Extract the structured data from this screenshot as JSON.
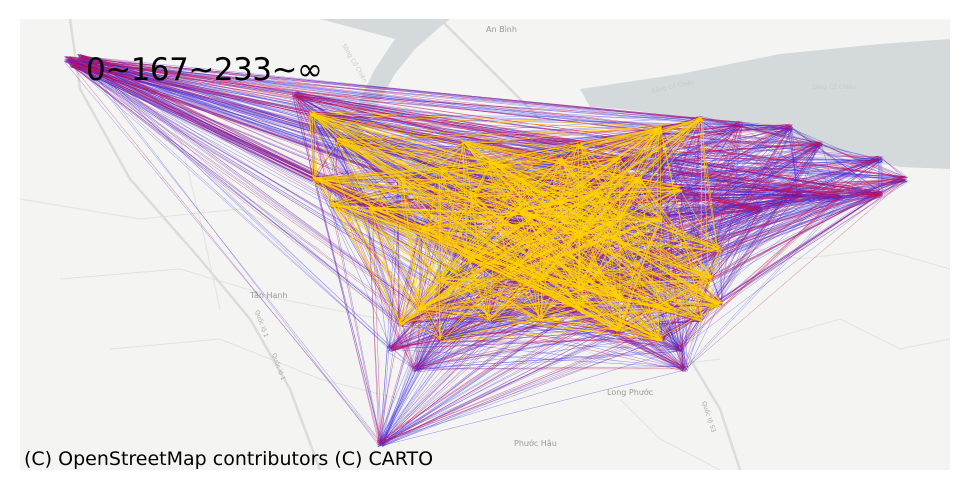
{
  "legend": {
    "text": "0~167~233~∞"
  },
  "attribution": "(C) OpenStreetMap contributors (C) CARTO",
  "basemap": {
    "style": "CARTO Positron",
    "places": [
      {
        "id": "an-binh",
        "label": "An Bình"
      },
      {
        "id": "tan-hanh",
        "label": "Tân Hạnh"
      },
      {
        "id": "long-phuoc",
        "label": "Long Phước"
      },
      {
        "id": "phuoc-hau",
        "label": "Phước Hậu"
      }
    ],
    "roads": [
      {
        "id": "ql1-a",
        "label": "Quốc lộ 1"
      },
      {
        "id": "ql1-b",
        "label": "Quốc lộ 1"
      },
      {
        "id": "ql53",
        "label": "Quốc lộ 53"
      }
    ],
    "rivers": [
      {
        "id": "river-1",
        "label": "Sông Cổ Chiên"
      },
      {
        "id": "river-2",
        "label": "Sông Cổ Chiên"
      },
      {
        "id": "river-3",
        "label": "Sông Cổ Chiên"
      }
    ]
  },
  "flow_classes": [
    {
      "range": "0~167",
      "color": "#2a1fe0"
    },
    {
      "range": "167~233",
      "color": "#cc1155"
    },
    {
      "range": "233~∞",
      "color": "#ffd200"
    }
  ]
}
